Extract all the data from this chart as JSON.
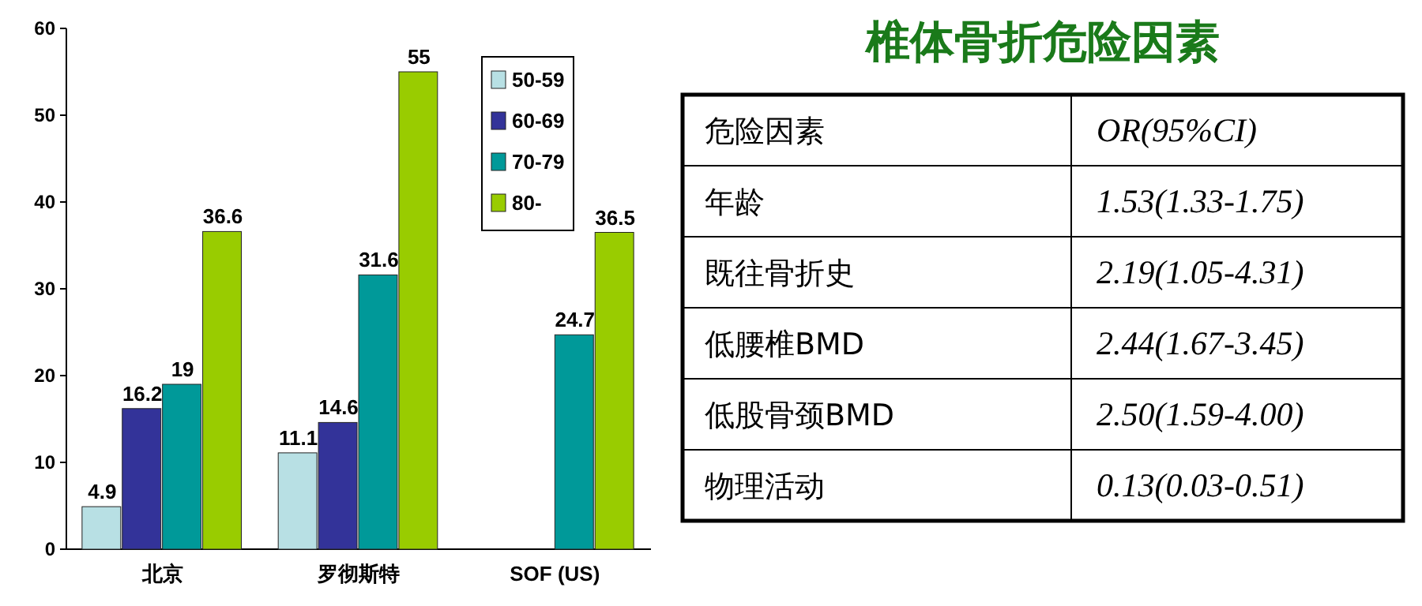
{
  "chart_data": [
    {
      "type": "bar",
      "categories": [
        "北京",
        "罗彻斯特",
        "SOF (US)"
      ],
      "series": [
        {
          "name": "50-59",
          "color": "#b8e0e4",
          "values": [
            4.9,
            11.1,
            null
          ]
        },
        {
          "name": "60-69",
          "color": "#333399",
          "values": [
            16.2,
            14.6,
            null
          ]
        },
        {
          "name": "70-79",
          "color": "#009999",
          "values": [
            19,
            31.6,
            24.7
          ]
        },
        {
          "name": "80-",
          "color": "#99cc00",
          "values": [
            36.6,
            55,
            36.5
          ]
        }
      ],
      "ylim": [
        0,
        60
      ],
      "yticks": [
        0,
        10,
        20,
        30,
        40,
        50,
        60
      ],
      "data_labels": true,
      "legend": "top right",
      "grid": false
    },
    {
      "type": "other",
      "title": "椎体骨折危险因素",
      "annotations": [
        "危险因素",
        "OR(95%CI)",
        "年龄",
        "1.53(1.33-1.75)",
        "既往骨折史",
        "2.19(1.05-4.31)",
        "低腰椎BMD",
        "2.44(1.67-3.45)",
        "低股骨颈BMD",
        "2.50(1.59-4.00)",
        "物理活动",
        "0.13(0.03-0.51)"
      ]
    }
  ]
}
